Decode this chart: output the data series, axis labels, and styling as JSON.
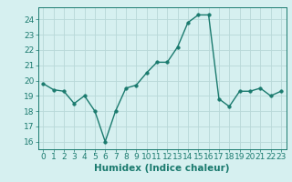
{
  "x": [
    0,
    1,
    2,
    3,
    4,
    5,
    6,
    7,
    8,
    9,
    10,
    11,
    12,
    13,
    14,
    15,
    16,
    17,
    18,
    19,
    20,
    21,
    22,
    23
  ],
  "y": [
    19.8,
    19.4,
    19.3,
    18.5,
    19.0,
    18.0,
    16.0,
    18.0,
    19.5,
    19.7,
    20.5,
    21.2,
    21.2,
    22.2,
    23.8,
    24.3,
    24.3,
    18.8,
    18.3,
    19.3,
    19.3,
    19.5,
    19.0,
    19.3
  ],
  "xlabel": "Humidex (Indice chaleur)",
  "ylim": [
    15.5,
    24.8
  ],
  "xlim": [
    -0.5,
    23.5
  ],
  "yticks": [
    16,
    17,
    18,
    19,
    20,
    21,
    22,
    23,
    24
  ],
  "xticks": [
    0,
    1,
    2,
    3,
    4,
    5,
    6,
    7,
    8,
    9,
    10,
    11,
    12,
    13,
    14,
    15,
    16,
    17,
    18,
    19,
    20,
    21,
    22,
    23
  ],
  "line_color": "#1a7a6e",
  "bg_color": "#d6f0f0",
  "grid_color": "#b8d8d8",
  "xlabel_fontsize": 7.5,
  "tick_fontsize": 6.5,
  "line_width": 1.0,
  "marker_size": 2.5
}
